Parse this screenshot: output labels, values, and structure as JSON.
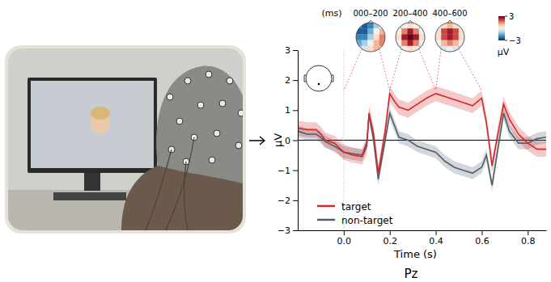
{
  "chart_data": {
    "type": "line",
    "title": "Pz",
    "x_label": "Time (s)",
    "y_label": "μV",
    "xlim": [
      -0.2,
      0.88
    ],
    "ylim": [
      -3,
      3
    ],
    "xticks": [
      {
        "value": 0,
        "label": "0.0"
      },
      {
        "value": 0.2,
        "label": "0.2"
      },
      {
        "value": 0.4,
        "label": "0.4"
      },
      {
        "value": 0.6,
        "label": "0.6"
      },
      {
        "value": 0.8,
        "label": "0.8"
      }
    ],
    "yticks": [
      {
        "value": -3,
        "label": "−3"
      },
      {
        "value": -2,
        "label": "−2"
      },
      {
        "value": -1,
        "label": "−1"
      },
      0,
      1,
      2,
      3
    ],
    "legend": "lower left",
    "x": [
      -0.2,
      -0.16,
      -0.12,
      -0.1,
      -0.08,
      -0.04,
      0,
      0.04,
      0.08,
      0.1,
      0.11,
      0.13,
      0.15,
      0.18,
      0.2,
      0.22,
      0.24,
      0.28,
      0.32,
      0.36,
      0.4,
      0.44,
      0.48,
      0.52,
      0.56,
      0.6,
      0.62,
      0.645,
      0.67,
      0.695,
      0.72,
      0.76,
      0.8,
      0.84,
      0.88
    ],
    "series": [
      {
        "name": "target",
        "color": "#d62728",
        "values": [
          0.4,
          0.35,
          0.35,
          0.2,
          0.0,
          -0.1,
          -0.4,
          -0.5,
          -0.55,
          -0.2,
          0.9,
          0.2,
          -1.1,
          0.3,
          1.55,
          1.3,
          1.1,
          1.0,
          1.2,
          1.4,
          1.55,
          1.45,
          1.35,
          1.25,
          1.15,
          1.4,
          0.6,
          -0.85,
          0.2,
          1.2,
          0.7,
          0.2,
          -0.1,
          -0.3,
          -0.3
        ],
        "error": [
          0.25,
          0.25,
          0.25,
          0.25,
          0.25,
          0.25,
          0.25,
          0.25,
          0.25,
          0.25,
          0.25,
          0.25,
          0.25,
          0.25,
          0.25,
          0.25,
          0.25,
          0.25,
          0.25,
          0.25,
          0.25,
          0.25,
          0.25,
          0.25,
          0.25,
          0.25,
          0.25,
          0.25,
          0.25,
          0.25,
          0.25,
          0.25,
          0.25,
          0.25,
          0.25
        ]
      },
      {
        "name": "non-target",
        "color": "#4f5d6c",
        "values": [
          0.3,
          0.2,
          0.2,
          0.1,
          -0.05,
          -0.2,
          -0.4,
          -0.45,
          -0.5,
          -0.1,
          0.85,
          0.0,
          -1.3,
          0.0,
          0.9,
          0.5,
          0.1,
          0.0,
          -0.2,
          -0.3,
          -0.4,
          -0.7,
          -0.9,
          -1.0,
          -1.1,
          -0.9,
          -0.5,
          -1.5,
          -0.3,
          0.9,
          0.3,
          -0.1,
          -0.1,
          0.05,
          0.1
        ],
        "error": [
          0.2,
          0.2,
          0.2,
          0.2,
          0.2,
          0.2,
          0.2,
          0.2,
          0.2,
          0.2,
          0.2,
          0.2,
          0.2,
          0.2,
          0.2,
          0.2,
          0.2,
          0.2,
          0.2,
          0.2,
          0.2,
          0.2,
          0.2,
          0.2,
          0.2,
          0.2,
          0.2,
          0.2,
          0.2,
          0.2,
          0.2,
          0.2,
          0.2,
          0.2,
          0.2
        ]
      }
    ],
    "topomaps_title": "(ms)",
    "topomaps": [
      {
        "label": "000–200",
        "window": [
          0,
          0.2
        ],
        "values": [
          [
            -2,
            -2.5,
            -2,
            -1,
            0
          ],
          [
            -2.5,
            -2.5,
            -1.5,
            0,
            1
          ],
          [
            -2,
            -2,
            -1,
            0.5,
            1.5
          ],
          [
            -1.5,
            -1,
            0,
            1,
            1.5
          ],
          [
            -1,
            -0.5,
            0.5,
            1,
            1
          ]
        ]
      },
      {
        "label": "200–400",
        "window": [
          0.2,
          0.4
        ],
        "values": [
          [
            -1,
            0,
            0.5,
            0,
            -1
          ],
          [
            0,
            1.5,
            2.5,
            1.5,
            0
          ],
          [
            0.5,
            2.5,
            3,
            2.5,
            0.5
          ],
          [
            0,
            1.5,
            2.5,
            1.5,
            0
          ],
          [
            -1,
            0,
            0.5,
            0,
            -1
          ]
        ]
      },
      {
        "label": "400–600",
        "window": [
          0.4,
          0.6
        ],
        "values": [
          [
            -0.5,
            0.5,
            1,
            0.5,
            -0.5
          ],
          [
            0.5,
            2,
            2.5,
            2,
            0.5
          ],
          [
            0.5,
            2,
            2.5,
            2,
            0.5
          ],
          [
            0,
            1,
            1.5,
            1,
            0
          ],
          [
            -1,
            -0.5,
            0,
            -0.5,
            -1
          ]
        ]
      }
    ],
    "colorbar": {
      "label": "μV",
      "range": [
        -3,
        3
      ],
      "ticks": [
        {
          "value": 3,
          "label": "3"
        },
        {
          "value": -3,
          "label": "−3"
        }
      ]
    }
  }
}
